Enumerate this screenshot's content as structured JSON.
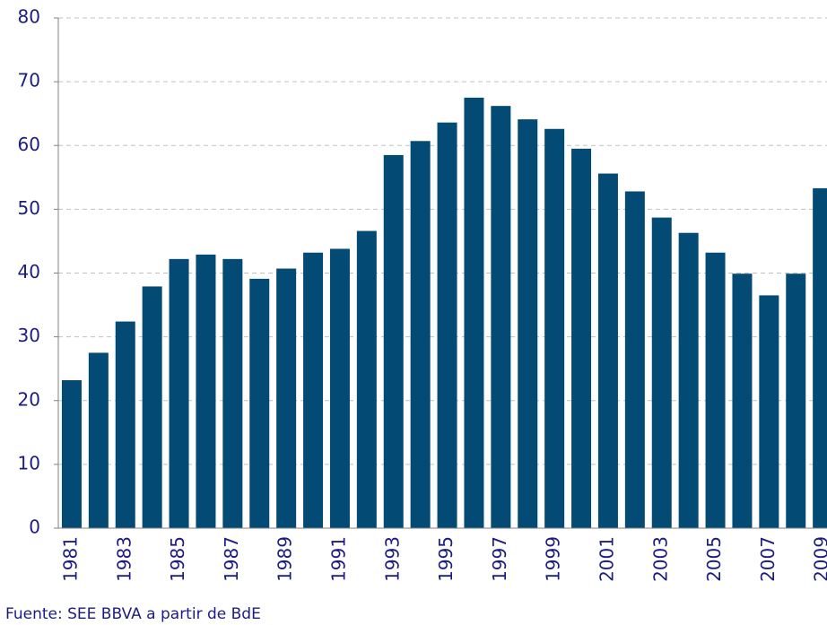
{
  "chart_data": {
    "type": "bar",
    "categories": [
      "1981",
      null,
      "1983",
      null,
      "1985",
      null,
      "1987",
      null,
      "1989",
      null,
      "1991",
      null,
      "1993",
      null,
      "1995",
      null,
      "1997",
      null,
      "1999",
      null,
      "2001",
      null,
      "2003",
      null,
      "2005",
      null,
      "2007",
      null,
      "2009"
    ],
    "values": [
      23.2,
      27.5,
      32.4,
      37.9,
      42.2,
      42.9,
      42.2,
      39.1,
      40.7,
      43.2,
      43.8,
      46.6,
      58.5,
      60.7,
      63.6,
      67.5,
      66.2,
      64.1,
      62.6,
      59.5,
      55.6,
      52.8,
      48.7,
      46.3,
      43.2,
      39.9,
      36.5,
      39.9,
      53.3
    ],
    "color": "#034b74",
    "ylim": [
      0,
      80
    ],
    "yticks": [
      0,
      10,
      20,
      30,
      40,
      50,
      60,
      70,
      80
    ],
    "grid": true,
    "source": "Fuente: SEE BBVA a partir de BdE"
  }
}
